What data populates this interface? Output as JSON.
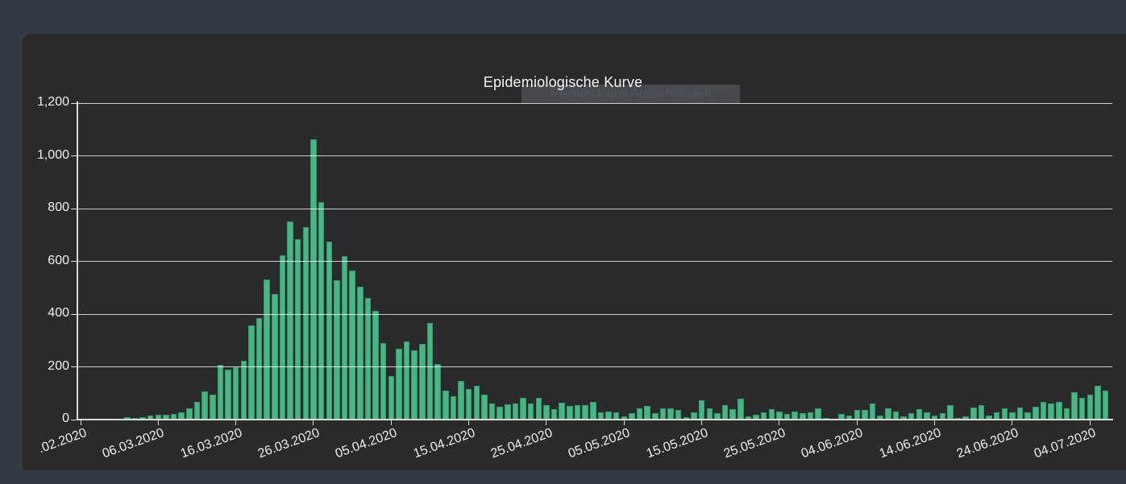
{
  "window": {
    "overlay_label": "Rechteckiges Ausschneiden"
  },
  "chart": {
    "title": "Epidemiologische Kurve"
  },
  "colors": {
    "page_background": "#343a44",
    "panel_background": "#2a2a2c",
    "bar_color": "#46b783",
    "gridline_color": "rgba(255,255,255,0.78)",
    "axis_color": "#dcdcdc",
    "label_color": "#f0f0f0"
  },
  "chart_data": {
    "type": "bar",
    "title": "Epidemiologische Kurve",
    "xlabel": "",
    "ylabel": "",
    "ylim": [
      0,
      1200
    ],
    "grid": true,
    "y_ticks": [
      0,
      200,
      400,
      600,
      800,
      1000,
      1200
    ],
    "y_tick_labels": [
      "0",
      "200",
      "400",
      "600",
      "800",
      "1,000",
      "1,200"
    ],
    "x_tick_labels": [
      ".02.2020",
      "06.03.2020",
      "16.03.2020",
      "26.03.2020",
      "05.04.2020",
      "15.04.2020",
      "25.04.2020",
      "05.05.2020",
      "15.05.2020",
      "25.05.2020",
      "04.06.2020",
      "14.06.2020",
      "24.06.2020",
      "04.07.2020"
    ],
    "categories": [
      "25.02.2020",
      "26.02.2020",
      "27.02.2020",
      "28.02.2020",
      "29.02.2020",
      "01.03.2020",
      "02.03.2020",
      "03.03.2020",
      "04.03.2020",
      "05.03.2020",
      "06.03.2020",
      "07.03.2020",
      "08.03.2020",
      "09.03.2020",
      "10.03.2020",
      "11.03.2020",
      "12.03.2020",
      "13.03.2020",
      "14.03.2020",
      "15.03.2020",
      "16.03.2020",
      "17.03.2020",
      "18.03.2020",
      "19.03.2020",
      "20.03.2020",
      "21.03.2020",
      "22.03.2020",
      "23.03.2020",
      "24.03.2020",
      "25.03.2020",
      "26.03.2020",
      "27.03.2020",
      "28.03.2020",
      "29.03.2020",
      "30.03.2020",
      "31.03.2020",
      "01.04.2020",
      "02.04.2020",
      "03.04.2020",
      "04.04.2020",
      "05.04.2020",
      "06.04.2020",
      "07.04.2020",
      "08.04.2020",
      "09.04.2020",
      "10.04.2020",
      "11.04.2020",
      "12.04.2020",
      "13.04.2020",
      "14.04.2020",
      "15.04.2020",
      "16.04.2020",
      "17.04.2020",
      "18.04.2020",
      "19.04.2020",
      "20.04.2020",
      "21.04.2020",
      "22.04.2020",
      "23.04.2020",
      "24.04.2020",
      "25.04.2020",
      "26.04.2020",
      "27.04.2020",
      "28.04.2020",
      "29.04.2020",
      "30.04.2020",
      "01.05.2020",
      "02.05.2020",
      "03.05.2020",
      "04.05.2020",
      "05.05.2020",
      "06.05.2020",
      "07.05.2020",
      "08.05.2020",
      "09.05.2020",
      "10.05.2020",
      "11.05.2020",
      "12.05.2020",
      "13.05.2020",
      "14.05.2020",
      "15.05.2020",
      "16.05.2020",
      "17.05.2020",
      "18.05.2020",
      "19.05.2020",
      "20.05.2020",
      "21.05.2020",
      "22.05.2020",
      "23.05.2020",
      "24.05.2020",
      "25.05.2020",
      "26.05.2020",
      "27.05.2020",
      "28.05.2020",
      "29.05.2020",
      "30.05.2020",
      "31.05.2020",
      "01.06.2020",
      "02.06.2020",
      "03.06.2020",
      "04.06.2020",
      "05.06.2020",
      "06.06.2020",
      "07.06.2020",
      "08.06.2020",
      "09.06.2020",
      "10.06.2020",
      "11.06.2020",
      "12.06.2020",
      "13.06.2020",
      "14.06.2020",
      "15.06.2020",
      "16.06.2020",
      "17.06.2020",
      "18.06.2020",
      "19.06.2020",
      "20.06.2020",
      "21.06.2020",
      "22.06.2020",
      "23.06.2020",
      "24.06.2020",
      "25.06.2020",
      "26.06.2020",
      "27.06.2020",
      "28.06.2020",
      "29.06.2020",
      "30.06.2020",
      "01.07.2020",
      "02.07.2020",
      "03.07.2020",
      "04.07.2020",
      "05.07.2020",
      "06.07.2020"
    ],
    "values": [
      2,
      2,
      3,
      2,
      4,
      4,
      8,
      7,
      10,
      14,
      17,
      18,
      22,
      28,
      42,
      67,
      107,
      95,
      209,
      188,
      200,
      222,
      357,
      384,
      532,
      476,
      624,
      750,
      685,
      730,
      1063,
      825,
      676,
      528,
      620,
      564,
      503,
      460,
      411,
      290,
      166,
      268,
      297,
      263,
      287,
      366,
      212,
      110,
      90,
      146,
      117,
      127,
      95,
      61,
      49,
      57,
      61,
      82,
      61,
      83,
      56,
      40,
      63,
      52,
      54,
      54,
      66,
      29,
      32,
      26,
      13,
      23,
      42,
      52,
      23,
      44,
      42,
      36,
      8,
      26,
      72,
      42,
      23,
      54,
      39,
      80,
      13,
      18,
      26,
      39,
      32,
      21,
      32,
      23,
      26,
      44,
      6,
      3,
      20,
      16,
      36,
      36,
      60,
      16,
      42,
      32,
      13,
      23,
      39,
      29,
      16,
      23,
      54,
      6,
      13,
      46,
      56,
      16,
      29,
      44,
      26,
      46,
      29,
      49,
      66,
      62,
      66,
      42,
      105,
      82,
      95,
      127,
      110
    ]
  }
}
